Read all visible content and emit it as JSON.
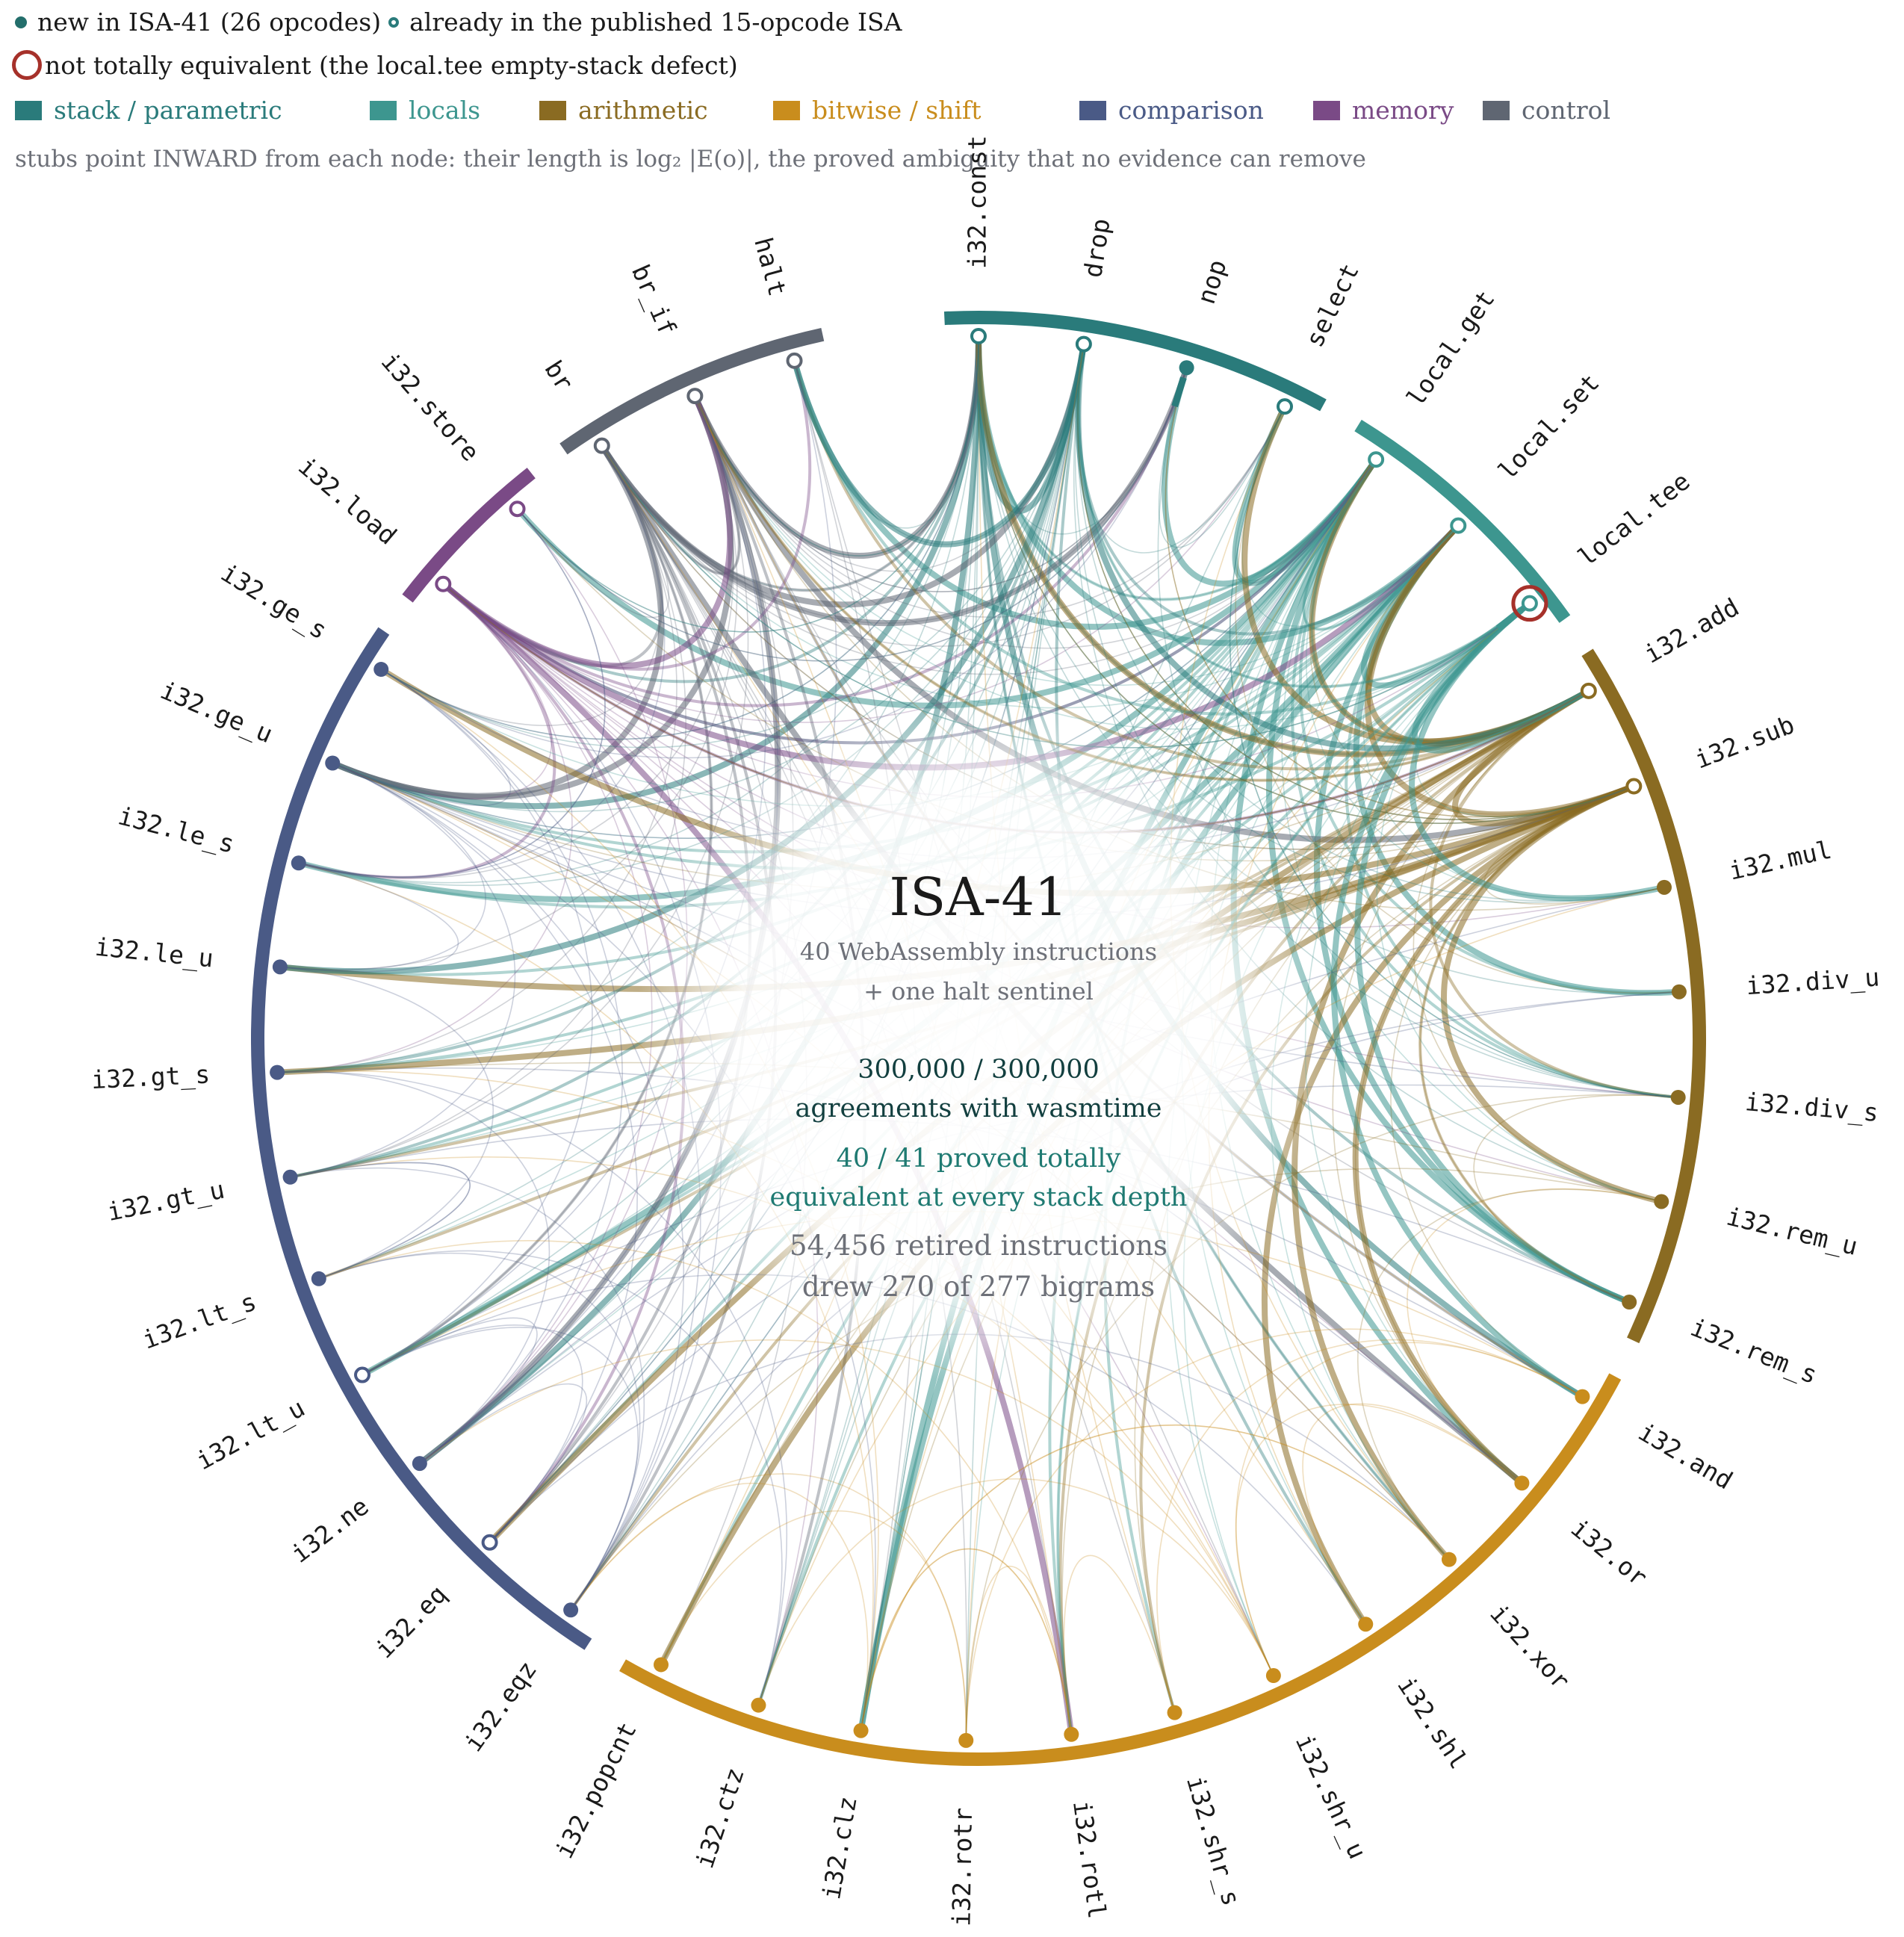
{
  "legend": {
    "new_label": "new in ISA-41 (26 opcodes)",
    "published_label": "already in the published 15-opcode ISA",
    "defect_label": "not totally equivalent (the local.tee empty-stack defect)",
    "stubs_note": "stubs point INWARD from each node: their length is log₂ |E(o)|, the proved ambiguity that no evidence can remove"
  },
  "categories": [
    {
      "key": "stack",
      "label": "stack / parametric",
      "color": "#2a7b7b"
    },
    {
      "key": "locals",
      "label": "locals",
      "color": "#3d968f"
    },
    {
      "key": "arith",
      "label": "arithmetic",
      "color": "#8a6b22"
    },
    {
      "key": "bitwise",
      "label": "bitwise / shift",
      "color": "#c98d1d"
    },
    {
      "key": "cmp",
      "label": "comparison",
      "color": "#4a5a86"
    },
    {
      "key": "mem",
      "label": "memory",
      "color": "#7a4a86"
    },
    {
      "key": "control",
      "label": "control",
      "color": "#5f6672"
    }
  ],
  "center": {
    "title": "ISA-41",
    "sub1": "40 WebAssembly instructions",
    "sub2": "+ one halt sentinel",
    "agree1": "300,000 / 300,000",
    "agree2": "agreements with wasmtime",
    "proved1": "40 / 41 proved totally",
    "proved2": "equivalent at every stack depth",
    "retired1": "54,456 retired instructions",
    "retired2": "drew 270 of 277 bigrams"
  },
  "nodes": [
    {
      "name": "i32.const",
      "cat": "stack",
      "isNew": false,
      "stub": 0
    },
    {
      "name": "drop",
      "cat": "stack",
      "isNew": false,
      "stub": 0
    },
    {
      "name": "nop",
      "cat": "stack",
      "isNew": true,
      "stub": 1
    },
    {
      "name": "select",
      "cat": "stack",
      "isNew": false,
      "stub": 0
    },
    {
      "name": "local.get",
      "cat": "locals",
      "isNew": false,
      "stub": 0
    },
    {
      "name": "local.set",
      "cat": "locals",
      "isNew": false,
      "stub": 0
    },
    {
      "name": "local.tee",
      "cat": "locals",
      "isNew": false,
      "stub": 1,
      "defect": true
    },
    {
      "name": "i32.add",
      "cat": "arith",
      "isNew": false,
      "stub": 0
    },
    {
      "name": "i32.sub",
      "cat": "arith",
      "isNew": false,
      "stub": 0
    },
    {
      "name": "i32.mul",
      "cat": "arith",
      "isNew": true,
      "stub": 0
    },
    {
      "name": "i32.div_u",
      "cat": "arith",
      "isNew": true,
      "stub": 0
    },
    {
      "name": "i32.div_s",
      "cat": "arith",
      "isNew": true,
      "stub": 0
    },
    {
      "name": "i32.rem_u",
      "cat": "arith",
      "isNew": true,
      "stub": 0
    },
    {
      "name": "i32.rem_s",
      "cat": "arith",
      "isNew": true,
      "stub": 0
    },
    {
      "name": "i32.and",
      "cat": "bitwise",
      "isNew": true,
      "stub": 0
    },
    {
      "name": "i32.or",
      "cat": "bitwise",
      "isNew": true,
      "stub": 0
    },
    {
      "name": "i32.xor",
      "cat": "bitwise",
      "isNew": true,
      "stub": 0
    },
    {
      "name": "i32.shl",
      "cat": "bitwise",
      "isNew": true,
      "stub": 0
    },
    {
      "name": "i32.shr_u",
      "cat": "bitwise",
      "isNew": true,
      "stub": 0
    },
    {
      "name": "i32.shr_s",
      "cat": "bitwise",
      "isNew": true,
      "stub": 0
    },
    {
      "name": "i32.rotl",
      "cat": "bitwise",
      "isNew": true,
      "stub": 0
    },
    {
      "name": "i32.rotr",
      "cat": "bitwise",
      "isNew": true,
      "stub": 0
    },
    {
      "name": "i32.clz",
      "cat": "bitwise",
      "isNew": true,
      "stub": 0
    },
    {
      "name": "i32.ctz",
      "cat": "bitwise",
      "isNew": true,
      "stub": 0
    },
    {
      "name": "i32.popcnt",
      "cat": "bitwise",
      "isNew": true,
      "stub": 0
    },
    {
      "name": "i32.eqz",
      "cat": "cmp",
      "isNew": true,
      "stub": 0
    },
    {
      "name": "i32.eq",
      "cat": "cmp",
      "isNew": false,
      "stub": 0
    },
    {
      "name": "i32.ne",
      "cat": "cmp",
      "isNew": true,
      "stub": 0
    },
    {
      "name": "i32.lt_u",
      "cat": "cmp",
      "isNew": false,
      "stub": 0
    },
    {
      "name": "i32.lt_s",
      "cat": "cmp",
      "isNew": true,
      "stub": 0
    },
    {
      "name": "i32.gt_u",
      "cat": "cmp",
      "isNew": true,
      "stub": 0
    },
    {
      "name": "i32.gt_s",
      "cat": "cmp",
      "isNew": true,
      "stub": 0
    },
    {
      "name": "i32.le_u",
      "cat": "cmp",
      "isNew": true,
      "stub": 0
    },
    {
      "name": "i32.le_s",
      "cat": "cmp",
      "isNew": true,
      "stub": 0
    },
    {
      "name": "i32.ge_u",
      "cat": "cmp",
      "isNew": true,
      "stub": 0
    },
    {
      "name": "i32.ge_s",
      "cat": "cmp",
      "isNew": true,
      "stub": 0
    },
    {
      "name": "i32.load",
      "cat": "mem",
      "isNew": false,
      "stub": 0
    },
    {
      "name": "i32.store",
      "cat": "mem",
      "isNew": false,
      "stub": 0
    },
    {
      "name": "br",
      "cat": "control",
      "isNew": false,
      "stub": 0
    },
    {
      "name": "br_if",
      "cat": "control",
      "isNew": false,
      "stub": 0
    },
    {
      "name": "halt",
      "cat": "control",
      "isNew": false,
      "stub": 0
    }
  ]
}
